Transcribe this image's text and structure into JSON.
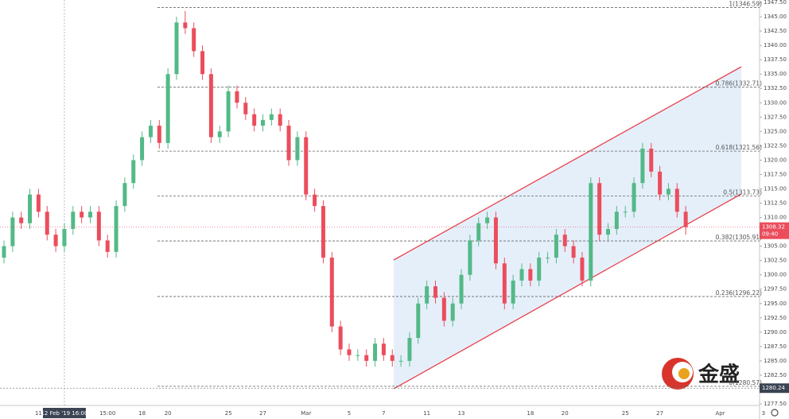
{
  "chart_data": {
    "type": "candlestick",
    "up_color": "#53b987",
    "down_color": "#eb4d5c",
    "categories": [
      null,
      null,
      null,
      null,
      "11",
      null,
      null,
      "12 Feb '19   16:00",
      null,
      null,
      null,
      null,
      "15:00",
      null,
      null,
      null,
      "18",
      null,
      null,
      "20",
      null,
      null,
      null,
      null,
      null,
      null,
      "25",
      null,
      null,
      null,
      "27",
      null,
      null,
      null,
      null,
      "Mar",
      null,
      null,
      null,
      null,
      "5",
      null,
      null,
      null,
      "7",
      null,
      null,
      null,
      null,
      "11",
      null,
      null,
      null,
      "13",
      null,
      null,
      null,
      null,
      null,
      null,
      null,
      "18",
      null,
      null,
      null,
      "20",
      null,
      null,
      null,
      null,
      null,
      null,
      "25",
      null,
      null,
      null,
      "27",
      null,
      null,
      null,
      null,
      null,
      null,
      "Apr",
      null,
      null,
      null,
      null,
      "3"
    ],
    "open": [
      1303,
      1305,
      1310,
      1309,
      1314,
      1311,
      1307,
      1305,
      1308,
      1311,
      1310,
      1311,
      1306,
      1304,
      1312,
      1316,
      1320,
      1324,
      1326,
      1323,
      1335,
      1344,
      1343,
      1339,
      1335,
      1324,
      1325,
      1332,
      1330,
      1328,
      1326,
      1327,
      1328,
      1326,
      1320,
      1324,
      1314,
      1312,
      1303,
      1291,
      1287,
      1286,
      1286,
      1285,
      1288,
      1286,
      1285,
      1285,
      1289,
      1295,
      1298,
      1296,
      1292,
      1295,
      1300,
      1306,
      1309,
      1310,
      1302,
      1295,
      1299,
      1301,
      1299,
      1303,
      1303,
      1307,
      1305,
      1303,
      1299,
      1316,
      1307,
      1308,
      1311,
      1311,
      1316,
      1322,
      1318,
      1314,
      1315,
      1311,
      null,
      null,
      null,
      null,
      null,
      null,
      null,
      null,
      null
    ],
    "high": [
      1306,
      1311,
      1311,
      1315,
      1315,
      1312,
      1308,
      1309,
      1312,
      1312,
      1312,
      1312,
      1307,
      1313,
      1317,
      1321,
      1325,
      1327,
      1327,
      1336,
      1345,
      1346,
      1344,
      1340,
      1336,
      1326,
      1333,
      1333,
      1331,
      1329,
      1328,
      1329,
      1329,
      1327,
      1325,
      1325,
      1315,
      1313,
      1304,
      1292,
      1288,
      1287,
      1287,
      1289,
      1289,
      1287,
      1286,
      1290,
      1296,
      1299,
      1299,
      1297,
      1296,
      1301,
      1307,
      1310,
      1311,
      1311,
      1303,
      1300,
      1302,
      1302,
      1304,
      1304,
      1308,
      1308,
      1306,
      1304,
      1317,
      1317,
      1309,
      1312,
      1312,
      1317,
      1323,
      1323,
      1319,
      1316,
      1316,
      1312,
      null,
      null,
      null,
      null,
      null,
      null,
      null,
      null,
      null
    ],
    "low": [
      1302,
      1304,
      1308,
      1308,
      1310,
      1306,
      1304,
      1304,
      1307,
      1309,
      1309,
      1305,
      1303,
      1303,
      1311,
      1315,
      1319,
      1323,
      1322,
      1322,
      1334,
      1342,
      1338,
      1334,
      1323,
      1323,
      1324,
      1329,
      1327,
      1325,
      1325,
      1326,
      1325,
      1319,
      1319,
      1313,
      1311,
      1302,
      1290,
      1286,
      1285,
      1285,
      1284,
      1284,
      1285,
      1284,
      1284,
      1284,
      1288,
      1294,
      1295,
      1291,
      1291,
      1294,
      1299,
      1305,
      1308,
      1301,
      1294,
      1294,
      1298,
      1298,
      1298,
      1302,
      1302,
      1304,
      1302,
      1298,
      1298,
      1306,
      1306,
      1307,
      1310,
      1310,
      1315,
      1317,
      1313,
      1313,
      1310,
      1307,
      null,
      null,
      null,
      null,
      null,
      null,
      null,
      null,
      null
    ],
    "close": [
      1305,
      1310,
      1309,
      1314,
      1311,
      1307,
      1305,
      1308,
      1311,
      1310,
      1311,
      1306,
      1304,
      1312,
      1316,
      1320,
      1324,
      1326,
      1323,
      1335,
      1344,
      1343,
      1339,
      1335,
      1324,
      1325,
      1332,
      1330,
      1328,
      1326,
      1327,
      1328,
      1326,
      1320,
      1324,
      1314,
      1312,
      1303,
      1291,
      1287,
      1286,
      1286,
      1285,
      1288,
      1286,
      1285,
      1285,
      1289,
      1295,
      1298,
      1296,
      1292,
      1295,
      1300,
      1306,
      1309,
      1310,
      1302,
      1295,
      1299,
      1301,
      1299,
      1303,
      1303,
      1307,
      1305,
      1303,
      1299,
      1316,
      1307,
      1308,
      1311,
      1311,
      1316,
      1322,
      1318,
      1314,
      1315,
      1311,
      1308.32,
      null,
      null,
      null,
      null,
      null,
      null,
      null,
      null,
      null
    ],
    "ylim": [
      1277.5,
      1347.5
    ],
    "yticks": [
      {
        "value": 1277.5,
        "label": "1277.50"
      },
      {
        "value": 1280,
        "label": "1280.00"
      },
      {
        "value": 1282.5,
        "label": "1282.50"
      },
      {
        "value": 1285,
        "label": "1285.00"
      },
      {
        "value": 1287.5,
        "label": "1287.50"
      },
      {
        "value": 1290,
        "label": "1290.00"
      },
      {
        "value": 1292.5,
        "label": "1292.50"
      },
      {
        "value": 1295,
        "label": "1295.00"
      },
      {
        "value": 1297.5,
        "label": "1297.50"
      },
      {
        "value": 1300,
        "label": "1300.00"
      },
      {
        "value": 1302.5,
        "label": "1302.50"
      },
      {
        "value": 1305,
        "label": "1305.00"
      },
      {
        "value": 1307.5,
        "label": "1307.50"
      },
      {
        "value": 1310,
        "label": "1310.00"
      },
      {
        "value": 1312.5,
        "label": "1312.50"
      },
      {
        "value": 1315,
        "label": "1315.00"
      },
      {
        "value": 1317.5,
        "label": "1317.50"
      },
      {
        "value": 1320,
        "label": "1320.00"
      },
      {
        "value": 1322.5,
        "label": "1322.50"
      },
      {
        "value": 1325,
        "label": "1325.00"
      },
      {
        "value": 1327.5,
        "label": "1327.50"
      },
      {
        "value": 1330,
        "label": "1330.00"
      },
      {
        "value": 1332.5,
        "label": "1332.50"
      },
      {
        "value": 1335,
        "label": "1335.00"
      },
      {
        "value": 1337.5,
        "label": "1337.50"
      },
      {
        "value": 1340,
        "label": "1340.00"
      },
      {
        "value": 1342.5,
        "label": "1342.50"
      },
      {
        "value": 1345,
        "label": "1345.00"
      },
      {
        "value": 1347.5,
        "label": "1347.50"
      }
    ],
    "fib_levels": [
      {
        "value": 1346.59,
        "label": "1(1346.59)"
      },
      {
        "value": 1332.71,
        "label": "0.786(1332.71)"
      },
      {
        "value": 1321.56,
        "label": "0.618(1321.56)"
      },
      {
        "value": 1313.73,
        "label": "0.5(1313.73)"
      },
      {
        "value": 1305.91,
        "label": "0.382(1305.91)"
      },
      {
        "value": 1296.22,
        "label": "0.236(1296.22)"
      },
      {
        "value": 1280.57,
        "label": "0(1280.57)"
      }
    ],
    "last_price": 1308.32,
    "countdown": "09:40",
    "crosshair_price": 1280.24,
    "grid": false,
    "watermark": "金盛"
  }
}
